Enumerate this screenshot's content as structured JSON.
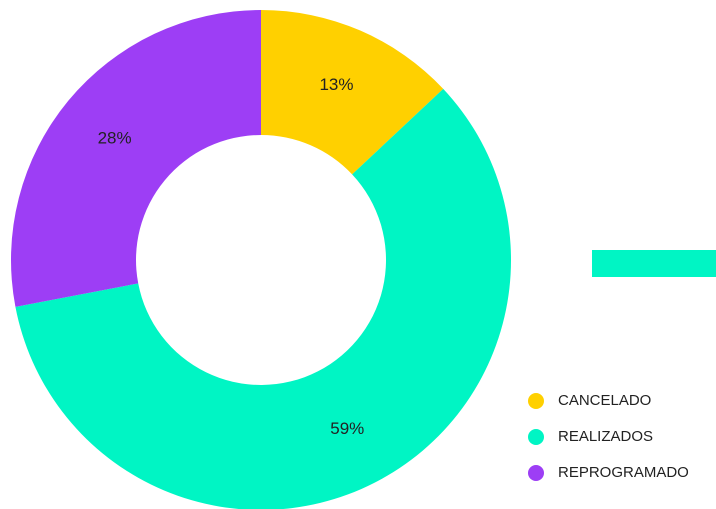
{
  "chart_data": {
    "type": "donut",
    "categories": [
      "CANCELADO",
      "REALIZADOS",
      "REPROGRAMADO"
    ],
    "values": [
      13,
      59,
      28
    ],
    "value_labels": [
      "13%",
      "59%",
      "28%"
    ],
    "colors": [
      "#ffd000",
      "#00f5c4",
      "#9d3ef5"
    ]
  }
}
